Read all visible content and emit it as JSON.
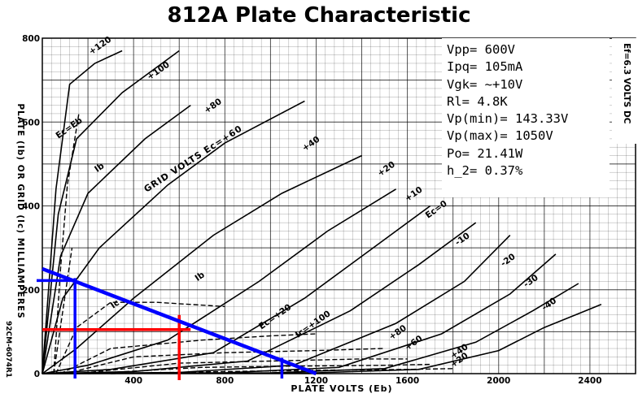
{
  "chart_data": {
    "type": "line",
    "title": "812A Plate Characteristic",
    "xlabel": "PLATE VOLTS (Eb)",
    "ylabel": "PLATE (Ib) OR GRID (Ic) MILLIAMPERES",
    "xlim": [
      0,
      2600
    ],
    "ylim": [
      0,
      800
    ],
    "xticks": [
      400,
      800,
      1200,
      1600,
      2000,
      2400
    ],
    "yticks": [
      0,
      200,
      400,
      600,
      800
    ],
    "grid": true,
    "side_note": "Ef=6.3 VOLTS DC",
    "corner_note": "92CM-6074R1",
    "grid_curve_label": "GRID VOLTS Ec=+60",
    "plate_curves": [
      {
        "name": "+120",
        "points": [
          [
            0,
            0
          ],
          [
            60,
            440
          ],
          [
            120,
            690
          ],
          [
            230,
            740
          ],
          [
            350,
            770
          ]
        ]
      },
      {
        "name": "+100",
        "points": [
          [
            0,
            0
          ],
          [
            70,
            380
          ],
          [
            150,
            560
          ],
          [
            350,
            670
          ],
          [
            600,
            770
          ]
        ]
      },
      {
        "name": "+80",
        "points": [
          [
            0,
            0
          ],
          [
            80,
            280
          ],
          [
            200,
            430
          ],
          [
            450,
            560
          ],
          [
            650,
            640
          ]
        ]
      },
      {
        "name": "+60",
        "points": [
          [
            0,
            0
          ],
          [
            90,
            180
          ],
          [
            250,
            300
          ],
          [
            550,
            450
          ],
          [
            800,
            550
          ],
          [
            1150,
            650
          ]
        ]
      },
      {
        "name": "+40",
        "points": [
          [
            0,
            0
          ],
          [
            150,
            60
          ],
          [
            400,
            180
          ],
          [
            750,
            330
          ],
          [
            1050,
            430
          ],
          [
            1400,
            520
          ]
        ]
      },
      {
        "name": "+20",
        "points": [
          [
            0,
            0
          ],
          [
            200,
            20
          ],
          [
            550,
            80
          ],
          [
            950,
            220
          ],
          [
            1250,
            340
          ],
          [
            1550,
            440
          ]
        ]
      },
      {
        "name": "+10",
        "points": [
          [
            0,
            0
          ],
          [
            300,
            10
          ],
          [
            750,
            50
          ],
          [
            1150,
            180
          ],
          [
            1450,
            300
          ],
          [
            1700,
            400
          ]
        ]
      },
      {
        "name": "Ec=0",
        "points": [
          [
            0,
            0
          ],
          [
            400,
            5
          ],
          [
            900,
            30
          ],
          [
            1350,
            150
          ],
          [
            1650,
            260
          ],
          [
            1900,
            360
          ]
        ]
      },
      {
        "name": "-10",
        "points": [
          [
            0,
            0
          ],
          [
            600,
            3
          ],
          [
            1100,
            20
          ],
          [
            1550,
            120
          ],
          [
            1850,
            220
          ],
          [
            2050,
            330
          ]
        ]
      },
      {
        "name": "-20",
        "points": [
          [
            0,
            0
          ],
          [
            800,
            2
          ],
          [
            1300,
            15
          ],
          [
            1750,
            95
          ],
          [
            2050,
            190
          ],
          [
            2250,
            285
          ]
        ]
      },
      {
        "name": "-30",
        "points": [
          [
            0,
            0
          ],
          [
            1000,
            2
          ],
          [
            1500,
            12
          ],
          [
            1900,
            75
          ],
          [
            2150,
            150
          ],
          [
            2350,
            215
          ]
        ]
      },
      {
        "name": "-40",
        "points": [
          [
            0,
            0
          ],
          [
            1200,
            2
          ],
          [
            1650,
            10
          ],
          [
            2000,
            55
          ],
          [
            2200,
            110
          ],
          [
            2450,
            165
          ]
        ]
      }
    ],
    "grid_curves": [
      {
        "name": "Ic=+120",
        "points": [
          [
            50,
            0
          ],
          [
            80,
            250
          ],
          [
            110,
            450
          ],
          [
            160,
            620
          ]
        ]
      },
      {
        "name": "Ic=+100",
        "points": [
          [
            50,
            0
          ],
          [
            90,
            150
          ],
          [
            130,
            300
          ]
        ]
      },
      {
        "name": "Ic=+60",
        "points": [
          [
            60,
            0
          ],
          [
            150,
            110
          ],
          [
            300,
            170
          ],
          [
            500,
            170
          ],
          [
            800,
            160
          ]
        ]
      },
      {
        "name": "Ec=+20",
        "points": [
          [
            80,
            0
          ],
          [
            300,
            60
          ],
          [
            700,
            80
          ],
          [
            1000,
            90
          ],
          [
            1200,
            95
          ]
        ]
      },
      {
        "name": "Ic=+80",
        "points": [
          [
            100,
            0
          ],
          [
            400,
            40
          ],
          [
            800,
            50
          ],
          [
            1200,
            55
          ],
          [
            1500,
            60
          ]
        ]
      },
      {
        "name": "+60",
        "points": [
          [
            150,
            0
          ],
          [
            600,
            25
          ],
          [
            1000,
            30
          ],
          [
            1400,
            35
          ],
          [
            1600,
            35
          ]
        ]
      },
      {
        "name": "+40",
        "points": [
          [
            200,
            0
          ],
          [
            700,
            15
          ],
          [
            1100,
            18
          ],
          [
            1500,
            20
          ],
          [
            1700,
            22
          ]
        ]
      },
      {
        "name": "+20",
        "points": [
          [
            300,
            0
          ],
          [
            800,
            5
          ],
          [
            1200,
            8
          ],
          [
            1600,
            10
          ],
          [
            1800,
            12
          ]
        ]
      }
    ],
    "inline_labels": [
      {
        "text": "Ec=Eb",
        "x": 70,
        "y": 560
      },
      {
        "text": "+120",
        "x": 215,
        "y": 760
      },
      {
        "text": "+100",
        "x": 470,
        "y": 700
      },
      {
        "text": "+80",
        "x": 720,
        "y": 620
      },
      {
        "text": "+40",
        "x": 1150,
        "y": 530
      },
      {
        "text": "+20",
        "x": 1480,
        "y": 470
      },
      {
        "text": "+10",
        "x": 1600,
        "y": 410
      },
      {
        "text": "Ec=0",
        "x": 1690,
        "y": 370
      },
      {
        "text": "-10",
        "x": 1820,
        "y": 305
      },
      {
        "text": "-20",
        "x": 2020,
        "y": 255
      },
      {
        "text": "-30",
        "x": 2120,
        "y": 205
      },
      {
        "text": "-40",
        "x": 2200,
        "y": 150
      },
      {
        "text": "Ib",
        "x": 240,
        "y": 480
      },
      {
        "text": "Ib",
        "x": 680,
        "y": 220
      },
      {
        "text": "Ic",
        "x": 310,
        "y": 155
      },
      {
        "text": "Ec=+20",
        "x": 960,
        "y": 105
      },
      {
        "text": "Ic=+100",
        "x": 1120,
        "y": 85
      },
      {
        "text": "+80",
        "x": 1530,
        "y": 80
      },
      {
        "text": "+60",
        "x": 1600,
        "y": 55
      },
      {
        "text": "+40",
        "x": 1800,
        "y": 35
      },
      {
        "text": "+20",
        "x": 1800,
        "y": 14
      }
    ],
    "load_line": {
      "points": [
        [
          0,
          250
        ],
        [
          1200,
          0
        ]
      ],
      "color": "#0000ff"
    },
    "operating_point": {
      "x": 600,
      "y": 105,
      "color": "#ff0000"
    },
    "swing_markers": [
      {
        "x": 143.33,
        "y": 220
      },
      {
        "x": 1050,
        "y": 30
      }
    ],
    "specs": [
      "Vpp= 600V",
      "Ipq= 105mA",
      "Vgk= ~+10V",
      "Rl= 4.8K",
      "Vp(min)= 143.33V",
      "Vp(max)= 1050V",
      "Po= 21.41W",
      "h_2= 0.37%"
    ]
  }
}
